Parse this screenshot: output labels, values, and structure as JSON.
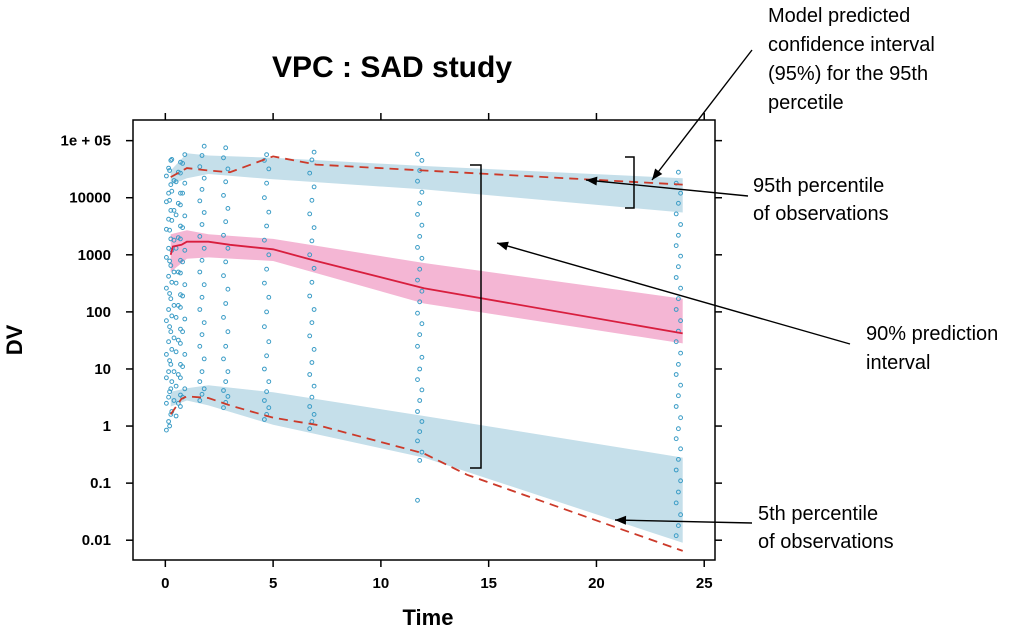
{
  "chart_data": {
    "type": "scatter",
    "title": "VPC : SAD study",
    "xlabel": "Time",
    "ylabel": "DV",
    "xlim": [
      -1.5,
      25.5
    ],
    "ylim": [
      0.0045,
      230000
    ],
    "yscale": "log",
    "x_ticks": [
      {
        "value": 0,
        "label": "0"
      },
      {
        "value": 5,
        "label": "5"
      },
      {
        "value": 10,
        "label": "10"
      },
      {
        "value": 15,
        "label": "15"
      },
      {
        "value": 20,
        "label": "20"
      },
      {
        "value": 25,
        "label": "25"
      }
    ],
    "y_ticks": [
      {
        "value": 100000,
        "label": "1e + 05"
      },
      {
        "value": 10000,
        "label": "10000"
      },
      {
        "value": 1000,
        "label": "1000"
      },
      {
        "value": 100,
        "label": "100"
      },
      {
        "value": 10,
        "label": "10"
      },
      {
        "value": 1,
        "label": "1"
      },
      {
        "value": 0.1,
        "label": "0.1"
      },
      {
        "value": 0.01,
        "label": "0.01"
      }
    ],
    "bands": [
      {
        "role": "ci-95th-percentile",
        "color": "#c5dfea",
        "upper": [
          [
            0.25,
            30000
          ],
          [
            1,
            60000
          ],
          [
            2,
            55000
          ],
          [
            5,
            50000
          ],
          [
            12,
            36000
          ],
          [
            24,
            22000
          ]
        ],
        "lower": [
          [
            24,
            5500
          ],
          [
            12,
            14000
          ],
          [
            5,
            21000
          ],
          [
            2,
            26000
          ],
          [
            1,
            22000
          ],
          [
            0.25,
            17000
          ]
        ]
      },
      {
        "role": "prediction-interval-90",
        "color": "#f4b6d4",
        "upper": [
          [
            0.25,
            2300
          ],
          [
            1,
            2700
          ],
          [
            2,
            2300
          ],
          [
            5,
            1900
          ],
          [
            12,
            720
          ],
          [
            24,
            170
          ]
        ],
        "lower": [
          [
            24,
            28
          ],
          [
            12,
            140
          ],
          [
            5,
            780
          ],
          [
            2,
            900
          ],
          [
            1,
            850
          ],
          [
            0.25,
            500
          ]
        ]
      },
      {
        "role": "ci-5th-percentile",
        "color": "#c5dfea",
        "upper": [
          [
            0.25,
            4
          ],
          [
            1,
            4.6
          ],
          [
            2,
            5.2
          ],
          [
            5,
            3.9
          ],
          [
            12,
            1.5
          ],
          [
            24,
            0.28
          ]
        ],
        "lower": [
          [
            24,
            0.009
          ],
          [
            12,
            0.28
          ],
          [
            5,
            1.05
          ],
          [
            2,
            2.3
          ],
          [
            1,
            2.8
          ],
          [
            0.25,
            2.2
          ]
        ]
      }
    ],
    "lines": [
      {
        "role": "observed-95th-percentile",
        "style": "dashed",
        "color": "#cc3a2a",
        "points": [
          [
            0.25,
            23000
          ],
          [
            1,
            33000
          ],
          [
            2,
            30000
          ],
          [
            3,
            28000
          ],
          [
            5,
            53000
          ],
          [
            7,
            38000
          ],
          [
            12,
            30000
          ],
          [
            24,
            17000
          ]
        ]
      },
      {
        "role": "observed-median",
        "style": "solid",
        "color": "#d81e3e",
        "points": [
          [
            0.25,
            1000
          ],
          [
            0.35,
            1400
          ],
          [
            0.75,
            1500
          ],
          [
            1,
            1700
          ],
          [
            2,
            1700
          ],
          [
            3,
            1500
          ],
          [
            5,
            1250
          ],
          [
            7,
            780
          ],
          [
            12,
            260
          ],
          [
            24,
            42
          ]
        ]
      },
      {
        "role": "observed-5th-percentile",
        "style": "dashed",
        "color": "#cc3a2a",
        "points": [
          [
            0.25,
            1.6
          ],
          [
            0.75,
            3.0
          ],
          [
            1,
            3.3
          ],
          [
            2,
            3.1
          ],
          [
            3,
            2.3
          ],
          [
            5,
            1.4
          ],
          [
            7,
            1.05
          ],
          [
            12,
            0.33
          ],
          [
            14,
            0.14
          ],
          [
            24,
            0.0065
          ]
        ]
      }
    ],
    "observations": [
      {
        "x": 0.15,
        "y": [
          0.85,
          1.2,
          1.6,
          2.5,
          3.2,
          4.5,
          7,
          9,
          12,
          18,
          30,
          45,
          70,
          110,
          170,
          260,
          420,
          650,
          900,
          1300,
          1900,
          2800,
          4200,
          6000,
          8500,
          12000,
          17000,
          24000,
          33000,
          45000
        ]
      },
      {
        "x": 0.3,
        "y": [
          1,
          1.8,
          2.8,
          4,
          6,
          9,
          14,
          22,
          35,
          55,
          85,
          130,
          210,
          330,
          500,
          780,
          1200,
          1800,
          2700,
          4000,
          6000,
          9000,
          13000,
          20000,
          30000,
          47000
        ]
      },
      {
        "x": 0.6,
        "y": [
          1.5,
          2.5,
          3.5,
          5,
          8,
          12,
          20,
          32,
          50,
          80,
          130,
          200,
          320,
          500,
          800,
          1300,
          2000,
          3200,
          5000,
          8000,
          12000,
          19000,
          28000,
          42000
        ]
      },
      {
        "x": 0.8,
        "y": [
          2.2,
          3.2,
          4.5,
          7,
          11,
          18,
          28,
          45,
          75,
          120,
          190,
          300,
          480,
          750,
          1200,
          1900,
          3000,
          4800,
          7500,
          12000,
          18000,
          27000,
          40000,
          57000
        ]
      },
      {
        "x": 1.7,
        "y": [
          2.8,
          3.6,
          4.5,
          6,
          9,
          15,
          25,
          40,
          65,
          110,
          180,
          300,
          500,
          800,
          1300,
          2100,
          3400,
          5500,
          8800,
          14000,
          22000,
          35000,
          55000,
          80000
        ]
      },
      {
        "x": 2.8,
        "y": [
          2.1,
          2.6,
          3.3,
          4.2,
          6,
          9,
          15,
          25,
          45,
          80,
          140,
          250,
          430,
          750,
          1300,
          2200,
          3800,
          6500,
          11000,
          19000,
          32000,
          50000,
          75000
        ]
      },
      {
        "x": 4.7,
        "y": [
          1.3,
          1.6,
          2.1,
          2.8,
          4,
          6,
          10,
          17,
          30,
          55,
          100,
          180,
          320,
          560,
          1000,
          1800,
          3200,
          5600,
          10000,
          18000,
          32000,
          45000,
          57000
        ]
      },
      {
        "x": 6.8,
        "y": [
          0.9,
          1.2,
          1.6,
          2.2,
          3.2,
          5,
          8,
          13,
          22,
          38,
          65,
          110,
          190,
          330,
          580,
          1000,
          1750,
          3000,
          5200,
          9000,
          15500,
          27000,
          46000,
          63000
        ]
      },
      {
        "x": 11.8,
        "y": [
          0.05,
          0.25,
          0.35,
          0.55,
          0.8,
          1.2,
          1.8,
          2.8,
          4.3,
          6.5,
          10,
          16,
          25,
          40,
          62,
          95,
          150,
          230,
          360,
          560,
          870,
          1350,
          2100,
          3300,
          5100,
          8000,
          12500,
          19500,
          30000,
          45000,
          58000
        ]
      },
      {
        "x": 23.8,
        "y": [
          0.012,
          0.018,
          0.028,
          0.045,
          0.07,
          0.11,
          0.17,
          0.26,
          0.4,
          0.6,
          0.9,
          1.4,
          2.2,
          3.4,
          5.2,
          8,
          12,
          19,
          30,
          46,
          70,
          110,
          170,
          260,
          400,
          620,
          950,
          1450,
          2200,
          3400,
          5200,
          8000,
          12000,
          18000,
          28000
        ]
      }
    ],
    "annotations": [
      {
        "id": "ci95",
        "lines": [
          "Model predicted",
          "confidence interval",
          "(95%) for the 95th",
          "percetile"
        ]
      },
      {
        "id": "p95obs",
        "lines": [
          "95th percentile",
          "of observations"
        ]
      },
      {
        "id": "pi90",
        "lines": [
          "90% prediction",
          "interval"
        ]
      },
      {
        "id": "p5obs",
        "lines": [
          "5th percentile",
          "of observations"
        ]
      }
    ]
  }
}
